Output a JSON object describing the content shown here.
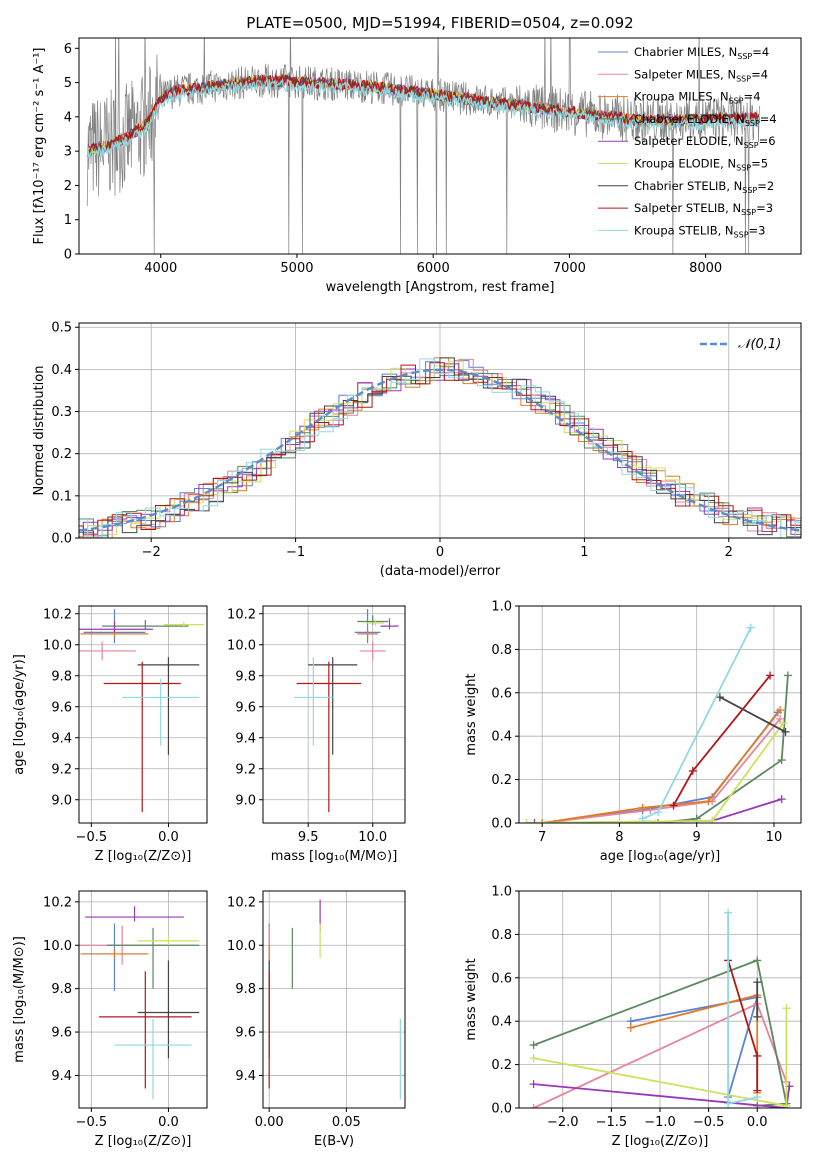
{
  "figure_title": "PLATE=0500, MJD=51994, FIBERID=0504, z=0.092",
  "models": [
    {
      "name": "Chabrier MILES",
      "nssp": "4",
      "color": "#5b82d6"
    },
    {
      "name": "Salpeter MILES",
      "nssp": "4",
      "color": "#e8849e"
    },
    {
      "name": "Kroupa MILES",
      "nssp": "4",
      "color": "#e07b27"
    },
    {
      "name": "Chabrier ELODIE",
      "nssp": "4",
      "color": "#5a8a5e"
    },
    {
      "name": "Salpeter ELODIE",
      "nssp": "6",
      "color": "#9b38b8"
    },
    {
      "name": "Kroupa ELODIE",
      "nssp": "5",
      "color": "#cfe05a"
    },
    {
      "name": "Chabrier STELIB",
      "nssp": "2",
      "color": "#444444"
    },
    {
      "name": "Salpeter STELIB",
      "nssp": "3",
      "color": "#b01818"
    },
    {
      "name": "Kroupa STELIB",
      "nssp": "3",
      "color": "#8fd9e0"
    }
  ],
  "chart_data": [
    {
      "id": "spectrum",
      "type": "line",
      "title": "PLATE=0500, MJD=51994, FIBERID=0504, z=0.092",
      "xlabel": "wavelength [Angstrom, rest frame]",
      "ylabel": "Flux [fλ10⁻¹⁷ erg cm⁻² s⁻¹ A⁻¹]",
      "xlim": [
        3400,
        8700
      ],
      "ylim": [
        0,
        6.3
      ],
      "xticks": [
        "4000",
        "5000",
        "6000",
        "7000",
        "8000"
      ],
      "yticks": [
        "0",
        "1",
        "2",
        "3",
        "4",
        "5",
        "6"
      ],
      "grid": false,
      "legend": "top-right",
      "data_color": "#808080",
      "continuum": {
        "x": [
          3460,
          3600,
          3750,
          3900,
          4000,
          4100,
          4300,
          4500,
          4700,
          4900,
          5100,
          5300,
          5500,
          5700,
          5900,
          6100,
          6300,
          6500,
          6700,
          6900,
          7100,
          7300,
          7500,
          7700,
          7900,
          8100,
          8300,
          8400
        ],
        "y": [
          3.0,
          3.15,
          3.4,
          3.8,
          4.55,
          4.75,
          4.85,
          4.95,
          5.05,
          5.05,
          5.0,
          4.95,
          4.9,
          4.8,
          4.7,
          4.6,
          4.5,
          4.4,
          4.3,
          4.2,
          4.1,
          4.0,
          3.9,
          3.9,
          3.9,
          3.95,
          3.95,
          3.95
        ]
      }
    },
    {
      "id": "residuals",
      "type": "bar",
      "xlabel": "(data-model)/error",
      "ylabel": "Normed distribution",
      "xlim": [
        -2.5,
        2.5
      ],
      "ylim": [
        0,
        0.51
      ],
      "xticks": [
        "−2",
        "−1",
        "0",
        "1",
        "2"
      ],
      "yticks": [
        "0.0",
        "0.1",
        "0.2",
        "0.3",
        "0.4",
        "0.5"
      ],
      "grid": true,
      "legend": "top-right",
      "reference": {
        "name": "𝒩(0,1)",
        "color": "#5b8bd0",
        "mean": 0,
        "sigma": 1
      },
      "bin_width": 0.1
    },
    {
      "id": "age_vs_Z",
      "type": "scatter",
      "xlabel": "Z [log₁₀(Z/Z⊙)]",
      "ylabel": "age  [log₁₀(age/yr)]",
      "xlim": [
        -0.58,
        0.25
      ],
      "ylim": [
        8.85,
        10.25
      ],
      "xticks": [
        "−0.5",
        "0.0"
      ],
      "yticks": [
        "9.0",
        "9.2",
        "9.4",
        "9.6",
        "9.8",
        "10.0",
        "10.2"
      ],
      "grid": true,
      "points": [
        {
          "model": 0,
          "x": -0.35,
          "y": 10.08,
          "xerr": 0.2,
          "yerr": [
            0.07,
            0.15
          ]
        },
        {
          "model": 1,
          "x": -0.43,
          "y": 9.96,
          "xerr": 0.22,
          "yerr": [
            0.06,
            0.06
          ]
        },
        {
          "model": 2,
          "x": -0.35,
          "y": 10.07,
          "xerr": 0.22,
          "yerr": [
            0.02,
            0.02
          ]
        },
        {
          "model": 3,
          "x": -0.15,
          "y": 10.12,
          "xerr": 0.28,
          "yerr": [
            0.02,
            0.04
          ]
        },
        {
          "model": 4,
          "x": -0.35,
          "y": 10.1,
          "xerr": 0.25,
          "yerr": [
            0.02,
            0.05
          ]
        },
        {
          "model": 5,
          "x": 0.1,
          "y": 10.13,
          "xerr": 0.13,
          "yerr": [
            0.02,
            0.02
          ]
        },
        {
          "model": 6,
          "x": 0.0,
          "y": 9.87,
          "xerr": 0.2,
          "yerr": [
            0.58,
            0.05
          ]
        },
        {
          "model": 7,
          "x": -0.17,
          "y": 9.75,
          "xerr": 0.25,
          "yerr": [
            0.83,
            0.14
          ]
        },
        {
          "model": 8,
          "x": -0.05,
          "y": 9.66,
          "xerr": 0.25,
          "yerr": [
            0.31,
            0.12
          ]
        }
      ]
    },
    {
      "id": "age_vs_mass",
      "type": "scatter",
      "xlabel": "mass [log₁₀(M/M⊙)]",
      "ylabel": "",
      "xlim": [
        9.15,
        10.25
      ],
      "ylim": [
        8.85,
        10.25
      ],
      "xticks": [
        "9.5",
        "10.0"
      ],
      "yticks": [
        "9.0",
        "9.2",
        "9.4",
        "9.6",
        "9.8",
        "10.0",
        "10.2"
      ],
      "grid": true,
      "points": [
        {
          "model": 0,
          "x": 9.96,
          "y": 10.08,
          "xerr": 0.1,
          "yerr": [
            0.07,
            0.15
          ]
        },
        {
          "model": 1,
          "x": 10.0,
          "y": 9.96,
          "xerr": 0.1,
          "yerr": [
            0.06,
            0.06
          ]
        },
        {
          "model": 2,
          "x": 9.96,
          "y": 10.07,
          "xerr": 0.08,
          "yerr": [
            0.02,
            0.02
          ]
        },
        {
          "model": 3,
          "x": 10.0,
          "y": 10.15,
          "xerr": 0.12,
          "yerr": [
            0.02,
            0.04
          ]
        },
        {
          "model": 4,
          "x": 10.13,
          "y": 10.12,
          "xerr": 0.07,
          "yerr": [
            0.02,
            0.05
          ]
        },
        {
          "model": 5,
          "x": 10.02,
          "y": 10.14,
          "xerr": 0.07,
          "yerr": [
            0.02,
            0.02
          ]
        },
        {
          "model": 6,
          "x": 9.69,
          "y": 9.87,
          "xerr": 0.19,
          "yerr": [
            0.58,
            0.05
          ]
        },
        {
          "model": 7,
          "x": 9.66,
          "y": 9.75,
          "xerr": 0.25,
          "yerr": [
            0.83,
            0.14
          ]
        },
        {
          "model": 8,
          "x": 9.54,
          "y": 9.66,
          "xerr": 0.15,
          "yerr": [
            0.31,
            0.26
          ]
        }
      ]
    },
    {
      "id": "massweight_vs_age",
      "type": "line",
      "xlabel": "age  [log₁₀(age/yr)]",
      "ylabel": "mass weight",
      "xlim": [
        6.7,
        10.35
      ],
      "ylim": [
        0,
        1
      ],
      "xticks": [
        "7",
        "8",
        "9",
        "10"
      ],
      "yticks": [
        "0.0",
        "0.2",
        "0.4",
        "0.6",
        "0.8",
        "1.0"
      ],
      "grid": true,
      "series": [
        {
          "model": 0,
          "x": [
            7.0,
            8.3,
            9.2,
            10.05
          ],
          "y": [
            0.0,
            0.06,
            0.12,
            0.51
          ]
        },
        {
          "model": 1,
          "x": [
            7.0,
            8.4,
            9.2,
            10.08
          ],
          "y": [
            0.0,
            0.06,
            0.1,
            0.48
          ]
        },
        {
          "model": 2,
          "x": [
            7.0,
            8.3,
            9.15,
            10.08
          ],
          "y": [
            0.0,
            0.07,
            0.1,
            0.52
          ]
        },
        {
          "model": 3,
          "x": [
            8.5,
            9.0,
            10.1,
            10.18
          ],
          "y": [
            0.0,
            0.02,
            0.29,
            0.68
          ]
        },
        {
          "model": 4,
          "x": [
            6.9,
            9.2,
            10.1
          ],
          "y": [
            0.0,
            0.01,
            0.11
          ]
        },
        {
          "model": 5,
          "x": [
            6.8,
            9.2,
            10.12
          ],
          "y": [
            0.0,
            0.01,
            0.46
          ]
        },
        {
          "model": 6,
          "x": [
            9.3,
            10.15
          ],
          "y": [
            0.58,
            0.42
          ]
        },
        {
          "model": 7,
          "x": [
            8.7,
            8.95,
            9.95
          ],
          "y": [
            0.08,
            0.24,
            0.68
          ]
        },
        {
          "model": 8,
          "x": [
            8.3,
            8.5,
            9.7
          ],
          "y": [
            0.02,
            0.05,
            0.9
          ]
        }
      ]
    },
    {
      "id": "mass_vs_Z",
      "type": "scatter",
      "xlabel": "Z [log₁₀(Z/Z⊙)]",
      "ylabel": "mass [log₁₀(M/M⊙)]",
      "xlim": [
        -0.58,
        0.25
      ],
      "ylim": [
        9.25,
        10.25
      ],
      "xticks": [
        "−0.5",
        "0.0"
      ],
      "yticks": [
        "9.4",
        "9.6",
        "9.8",
        "10.0",
        "10.2"
      ],
      "grid": true,
      "points": [
        {
          "model": 0,
          "x": -0.35,
          "y": 9.96,
          "xerr": 0.2,
          "yerr": [
            0.17,
            0.14
          ]
        },
        {
          "model": 1,
          "x": -0.3,
          "y": 10.0,
          "xerr": 0.28,
          "yerr": [
            0.09,
            0.09
          ]
        },
        {
          "model": 2,
          "x": -0.35,
          "y": 9.96,
          "xerr": 0.22,
          "yerr": [
            0.02,
            0.02
          ]
        },
        {
          "model": 3,
          "x": -0.1,
          "y": 10.0,
          "xerr": 0.3,
          "yerr": [
            0.2,
            0.08
          ]
        },
        {
          "model": 4,
          "x": -0.22,
          "y": 10.13,
          "xerr": 0.32,
          "yerr": [
            0.02,
            0.05
          ]
        },
        {
          "model": 5,
          "x": 0.0,
          "y": 10.02,
          "xerr": 0.2,
          "yerr": [
            0.02,
            0.02
          ]
        },
        {
          "model": 6,
          "x": 0.0,
          "y": 9.69,
          "xerr": 0.2,
          "yerr": [
            0.21,
            0.24
          ]
        },
        {
          "model": 7,
          "x": -0.15,
          "y": 9.67,
          "xerr": 0.3,
          "yerr": [
            0.33,
            0.21
          ]
        },
        {
          "model": 8,
          "x": -0.1,
          "y": 9.54,
          "xerr": 0.25,
          "yerr": [
            0.25,
            0.12
          ]
        }
      ]
    },
    {
      "id": "mass_vs_ebv",
      "type": "scatter",
      "xlabel": "E(B-V)",
      "ylabel": "",
      "xlim": [
        -0.004,
        0.088
      ],
      "ylim": [
        9.25,
        10.25
      ],
      "xticks": [
        "0.00",
        "0.05"
      ],
      "yticks": [
        "9.4",
        "9.6",
        "9.8",
        "10.0",
        "10.2"
      ],
      "grid": true,
      "points": [
        {
          "model": 0,
          "x": 0.0,
          "y": 9.96,
          "xerr": 0.0,
          "yerr": [
            0.17,
            0.14
          ]
        },
        {
          "model": 1,
          "x": 0.0,
          "y": 10.0,
          "xerr": 0.0,
          "yerr": [
            0.09,
            0.09
          ]
        },
        {
          "model": 2,
          "x": 0.0,
          "y": 9.96,
          "xerr": 0.0,
          "yerr": [
            0.04,
            0.04
          ]
        },
        {
          "model": 3,
          "x": 0.015,
          "y": 10.0,
          "xerr": 0.0,
          "yerr": [
            0.2,
            0.08
          ]
        },
        {
          "model": 4,
          "x": 0.033,
          "y": 10.13,
          "xerr": 0.0,
          "yerr": [
            0.07,
            0.08
          ]
        },
        {
          "model": 5,
          "x": 0.033,
          "y": 10.02,
          "xerr": 0.0,
          "yerr": [
            0.08,
            0.08
          ]
        },
        {
          "model": 6,
          "x": 0.0,
          "y": 9.69,
          "xerr": 0.0,
          "yerr": [
            0.21,
            0.24
          ]
        },
        {
          "model": 7,
          "x": 0.0,
          "y": 9.67,
          "xerr": 0.0,
          "yerr": [
            0.33,
            0.21
          ]
        },
        {
          "model": 8,
          "x": 0.085,
          "y": 9.54,
          "xerr": 0.0,
          "yerr": [
            0.25,
            0.12
          ]
        }
      ]
    },
    {
      "id": "massweight_vs_Z",
      "type": "line",
      "xlabel": "Z [log₁₀(Z/Z⊙)]",
      "ylabel": "mass weight",
      "xlim": [
        -2.45,
        0.45
      ],
      "ylim": [
        0,
        1
      ],
      "xticks": [
        "−2.0",
        "−1.5",
        "−1.0",
        "−0.5",
        "0.0"
      ],
      "yticks": [
        "0.0",
        "0.2",
        "0.4",
        "0.6",
        "0.8",
        "1.0"
      ],
      "grid": true,
      "series": [
        {
          "model": 0,
          "x": [
            -1.3,
            0.0,
            -0.3
          ],
          "y": [
            0.4,
            0.51,
            0.05
          ]
        },
        {
          "model": 1,
          "x": [
            -2.3,
            0.0,
            0.3
          ],
          "y": [
            0.0,
            0.48,
            0.12
          ]
        },
        {
          "model": 2,
          "x": [
            -1.3,
            0.0,
            0.0
          ],
          "y": [
            0.37,
            0.52,
            0.07
          ]
        },
        {
          "model": 3,
          "x": [
            -2.3,
            0.0,
            0.3,
            0.0
          ],
          "y": [
            0.29,
            0.68,
            0.02,
            0.01
          ]
        },
        {
          "model": 4,
          "x": [
            -2.3,
            0.3,
            0.33
          ],
          "y": [
            0.11,
            0.0,
            0.1
          ]
        },
        {
          "model": 5,
          "x": [
            -2.3,
            0.3,
            0.3
          ],
          "y": [
            0.23,
            0.01,
            0.46
          ]
        },
        {
          "model": 6,
          "x": [
            0.0,
            0.0
          ],
          "y": [
            0.58,
            0.42
          ]
        },
        {
          "model": 7,
          "x": [
            -0.3,
            0.0,
            0.0
          ],
          "y": [
            0.68,
            0.24,
            0.08
          ]
        },
        {
          "model": 8,
          "x": [
            -0.3,
            -0.3,
            0.0
          ],
          "y": [
            0.9,
            0.02,
            0.05
          ]
        }
      ]
    }
  ]
}
